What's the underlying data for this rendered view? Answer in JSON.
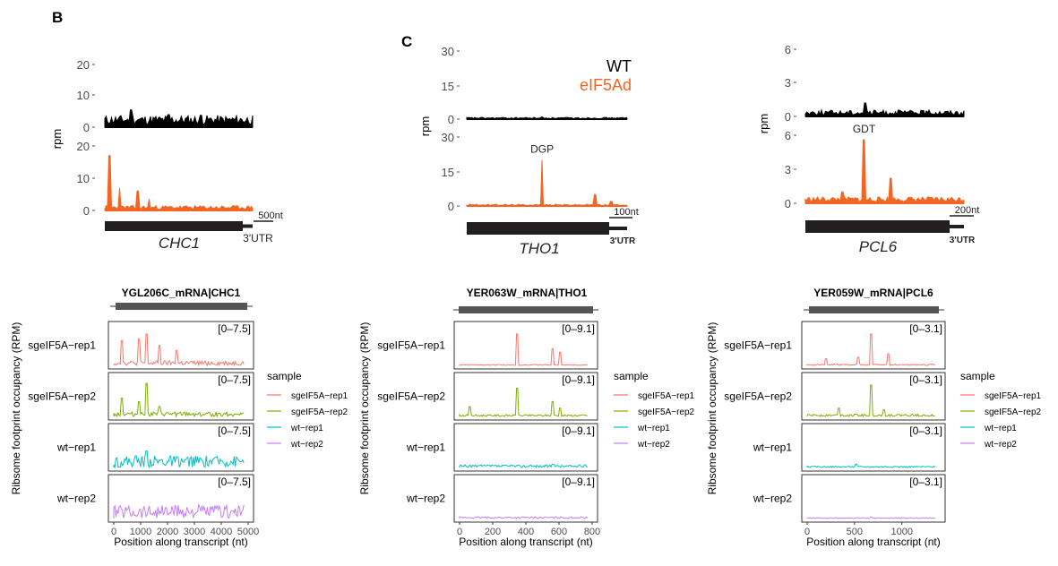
{
  "panels": {
    "B": {
      "letter": "B"
    },
    "C": {
      "letter": "C"
    }
  },
  "legend_top": {
    "wt": "WT",
    "mut": "eIF5Ad"
  },
  "colors": {
    "wt_top": "#000000",
    "mut_top": "#f26522",
    "sgeIF5A-rep1": "#f8766d",
    "sgeIF5A-rep2": "#7cae00",
    "wt-rep1": "#00bfc4",
    "wt-rep2": "#c77cff",
    "gene_box": "#231f20"
  },
  "top_tracks": [
    {
      "gene": "CHC1",
      "ylabel": "rpm",
      "wt_ticks": [
        "20",
        "10",
        "0"
      ],
      "mut_ticks": [
        "20",
        "10",
        "0"
      ],
      "wt_ylim": [
        0,
        20
      ],
      "mut_ylim": [
        0,
        20
      ],
      "scale_bar": "500nt",
      "utr_label": "3'UTR",
      "peak_label": ""
    },
    {
      "gene": "THO1",
      "ylabel": "rpm",
      "wt_ticks": [
        "30",
        "15",
        "0"
      ],
      "mut_ticks": [
        "30",
        "15",
        "0"
      ],
      "wt_ylim": [
        0,
        30
      ],
      "mut_ylim": [
        0,
        30
      ],
      "scale_bar": "100nt",
      "utr_label": "3'UTR",
      "peak_label": "DGP"
    },
    {
      "gene": "PCL6",
      "ylabel": "rpm",
      "wt_ticks": [
        "6",
        "3",
        "0"
      ],
      "mut_ticks": [
        "6",
        "3",
        "0"
      ],
      "wt_ylim": [
        0,
        6
      ],
      "mut_ylim": [
        0,
        6
      ],
      "scale_bar": "200nt",
      "utr_label": "3'UTR",
      "peak_label": "GDT"
    }
  ],
  "facet_panels": [
    {
      "title": "YGL206C_mRNA|CHC1",
      "range_label": "[0–7.5]",
      "xticks": [
        "0",
        "1000",
        "2000",
        "3000",
        "4000",
        "5000"
      ],
      "xtick_values": [
        0,
        1000,
        2000,
        3000,
        4000,
        5000
      ],
      "xlim": [
        0,
        5000
      ],
      "xlabel": "Position along transcript (nt)",
      "ylabel": "Ribsome footprint occupancy (RPM)"
    },
    {
      "title": "YER063W_mRNA|THO1",
      "range_label": "[0–9.1]",
      "xticks": [
        "0",
        "200",
        "400",
        "600",
        "800"
      ],
      "xtick_values": [
        0,
        200,
        400,
        600,
        800
      ],
      "xlim": [
        0,
        800
      ],
      "xlabel": "Position along transcript (nt)",
      "ylabel": "Ribsome footprint occupancy (RPM)"
    },
    {
      "title": "YER059W_mRNA|PCL6",
      "range_label": "[0–3.1]",
      "xticks": [
        "0",
        "500",
        "1000"
      ],
      "xtick_values": [
        0,
        500,
        1000
      ],
      "xlim": [
        0,
        1400
      ],
      "xlabel": "Position along transcript (nt)",
      "ylabel": "Ribsome footprint occupancy (RPM)"
    }
  ],
  "samples": [
    "sgeIF5A−rep1",
    "sgeIF5A−rep2",
    "wt−rep1",
    "wt−rep2"
  ],
  "legend": {
    "title": "sample",
    "entries": [
      "sgeIF5A−rep1",
      "sgeIF5A−rep2",
      "wt−rep1",
      "wt−rep2"
    ]
  },
  "chart_data": [
    {
      "type": "area",
      "title": "CHC1 (panel B)",
      "series": [
        {
          "name": "WT",
          "peaks": [
            [
              0.18,
              5.5
            ],
            [
              0.43,
              4
            ],
            [
              0.65,
              3.8
            ]
          ],
          "baseline": 2.0
        },
        {
          "name": "eIF5Ad",
          "peaks": [
            [
              0.03,
              17
            ],
            [
              0.1,
              7
            ],
            [
              0.22,
              6
            ],
            [
              0.3,
              3.5
            ]
          ],
          "baseline": 0.8
        }
      ],
      "ylim": [
        0,
        20
      ]
    },
    {
      "type": "area",
      "title": "THO1 (panel C)",
      "series": [
        {
          "name": "WT",
          "peaks": [
            [
              0.47,
              1.0
            ]
          ],
          "baseline": 0.4
        },
        {
          "name": "eIF5Ad",
          "peaks": [
            [
              0.47,
              20
            ],
            [
              0.8,
              5
            ],
            [
              0.9,
              2
            ]
          ],
          "baseline": 0.4
        }
      ],
      "ylim": [
        0,
        30
      ]
    },
    {
      "type": "area",
      "title": "PCL6 (panel C)",
      "series": [
        {
          "name": "WT",
          "peaks": [
            [
              0.38,
              1.2
            ]
          ],
          "baseline": 0.3
        },
        {
          "name": "eIF5Ad",
          "peaks": [
            [
              0.37,
              5.6
            ],
            [
              0.54,
              2.2
            ],
            [
              0.23,
              1.0
            ]
          ],
          "baseline": 0.3
        }
      ],
      "ylim": [
        0,
        6
      ]
    }
  ]
}
